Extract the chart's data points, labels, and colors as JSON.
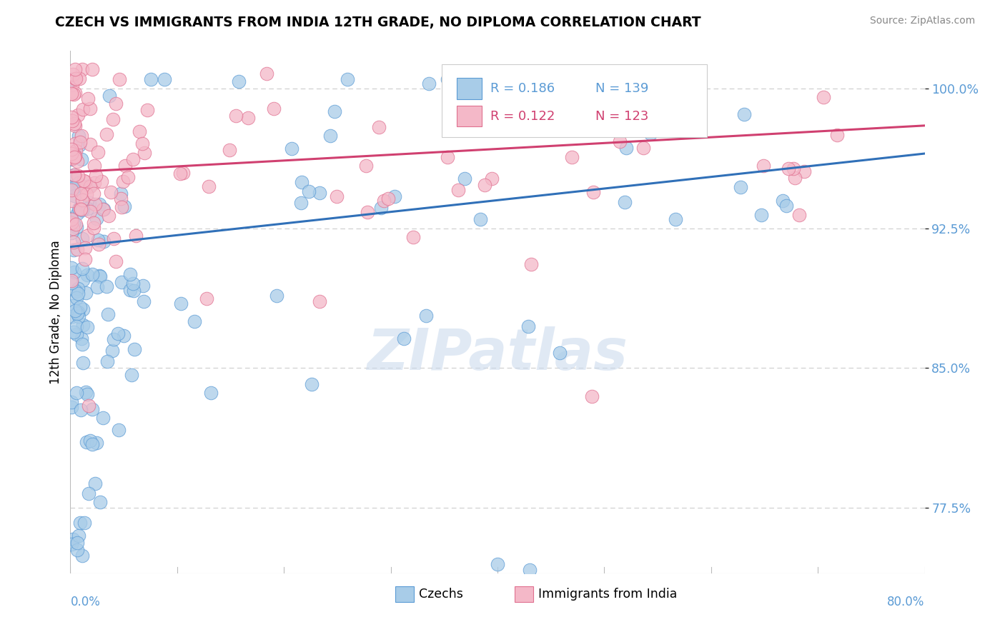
{
  "title": "CZECH VS IMMIGRANTS FROM INDIA 12TH GRADE, NO DIPLOMA CORRELATION CHART",
  "source": "Source: ZipAtlas.com",
  "ylabel": "12th Grade, No Diploma",
  "ytick_vals": [
    100.0,
    92.5,
    85.0,
    77.5
  ],
  "ytick_labels": [
    "100.0%",
    "92.5%",
    "85.0%",
    "77.5%"
  ],
  "xmin": 0.0,
  "xmax": 80.0,
  "ymin": 74.0,
  "ymax": 102.0,
  "legend_r_blue": "R = 0.186",
  "legend_n_blue": "N = 139",
  "legend_r_pink": "R = 0.122",
  "legend_n_pink": "N = 123",
  "legend_label_blue": "Czechs",
  "legend_label_pink": "Immigrants from India",
  "color_blue_fill": "#A8CCE8",
  "color_blue_edge": "#5B9BD5",
  "color_pink_fill": "#F4B8C8",
  "color_pink_edge": "#E07090",
  "color_line_blue": "#3070B8",
  "color_line_pink": "#D04070",
  "watermark": "ZIPatlas",
  "title_color": "#000000",
  "axis_color": "#5B9BD5",
  "blue_intercept": 91.5,
  "blue_slope_per80": 5.0,
  "pink_intercept": 95.5,
  "pink_slope_per80": 2.5
}
